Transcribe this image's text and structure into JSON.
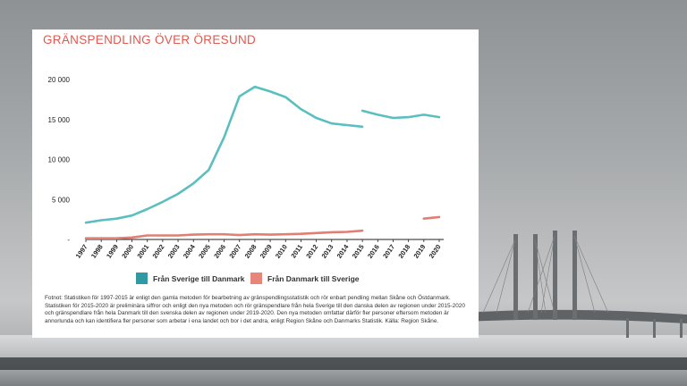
{
  "colors": {
    "series1": "#5bbfbf",
    "series2": "#e07f72",
    "legend_swatch1": "#2f9aa4",
    "legend_swatch2": "#e8857a",
    "title": "#e0584e"
  },
  "chart_data": {
    "type": "line",
    "title": "GRÄNSPENDLING ÖVER ÖRESUND",
    "categories": [
      "1997",
      "1998",
      "1999",
      "2000",
      "2001",
      "2002",
      "2003",
      "2004",
      "2005",
      "2006",
      "2007",
      "2008",
      "2009",
      "2010",
      "2011",
      "2012",
      "2013",
      "2014",
      "2015",
      "2016",
      "2017",
      "2018",
      "2019",
      "2020"
    ],
    "y_ticks": [
      "20 000",
      "15 000",
      "10 000",
      "5 000",
      "-"
    ],
    "ylim": [
      0,
      20000
    ],
    "series": [
      {
        "name": "Från Sverige till Danmark",
        "segments": [
          {
            "x": [
              "1997",
              "1998",
              "1999",
              "2000",
              "2001",
              "2002",
              "2003",
              "2004",
              "2005",
              "2006",
              "2007",
              "2008",
              "2009",
              "2010",
              "2011",
              "2012",
              "2013",
              "2014",
              "2015"
            ],
            "values": [
              2100,
              2400,
              2600,
              3000,
              3800,
              4700,
              5700,
              7000,
              8700,
              12800,
              17900,
              19100,
              18500,
              17800,
              16300,
              15200,
              14500,
              14300,
              14100
            ]
          },
          {
            "x": [
              "2015",
              "2016",
              "2017",
              "2018",
              "2019",
              "2020"
            ],
            "values": [
              16100,
              15600,
              15200,
              15300,
              15600,
              15300
            ]
          }
        ]
      },
      {
        "name": "Från Danmark till Sverige",
        "segments": [
          {
            "x": [
              "1997",
              "1998",
              "1999",
              "2000",
              "2001",
              "2002",
              "2003",
              "2004",
              "2005",
              "2006",
              "2007",
              "2008",
              "2009",
              "2010",
              "2011",
              "2012",
              "2013",
              "2014",
              "2015"
            ],
            "values": [
              150,
              150,
              150,
              250,
              500,
              500,
              500,
              600,
              650,
              650,
              550,
              650,
              600,
              650,
              700,
              800,
              900,
              950,
              1100
            ]
          },
          {
            "x": [
              "2019",
              "2020"
            ],
            "values": [
              2600,
              2800
            ]
          }
        ]
      }
    ],
    "legend": [
      "Från Sverige till Danmark",
      "Från Danmark till Sverige"
    ],
    "grid": false
  },
  "footnote": "Fotnot: Statistiken för 1997-2015 är enligt den gamla metoden för bearbetning av gränspendlingsstatistik  och rör enbart pendling mellan Skåne och Östdanmark. Statistiken för 2015-2020 är preliminära siffror och enligt den nya metoden och rör gränspendlare från hela Sverige till den danska delen av regionen under 2015-2020 och gränspendlare från hela Danmark till den svenska delen av regionen under 2019-2020. Den nya metoden omfattar därför fler personer eftersom metoden är annorlunda och kan identifiera fler personer som arbetar i ena landet och bor i det andra, enligt Region Skåne och Danmarks Statistik. Källa: Region Skåne."
}
